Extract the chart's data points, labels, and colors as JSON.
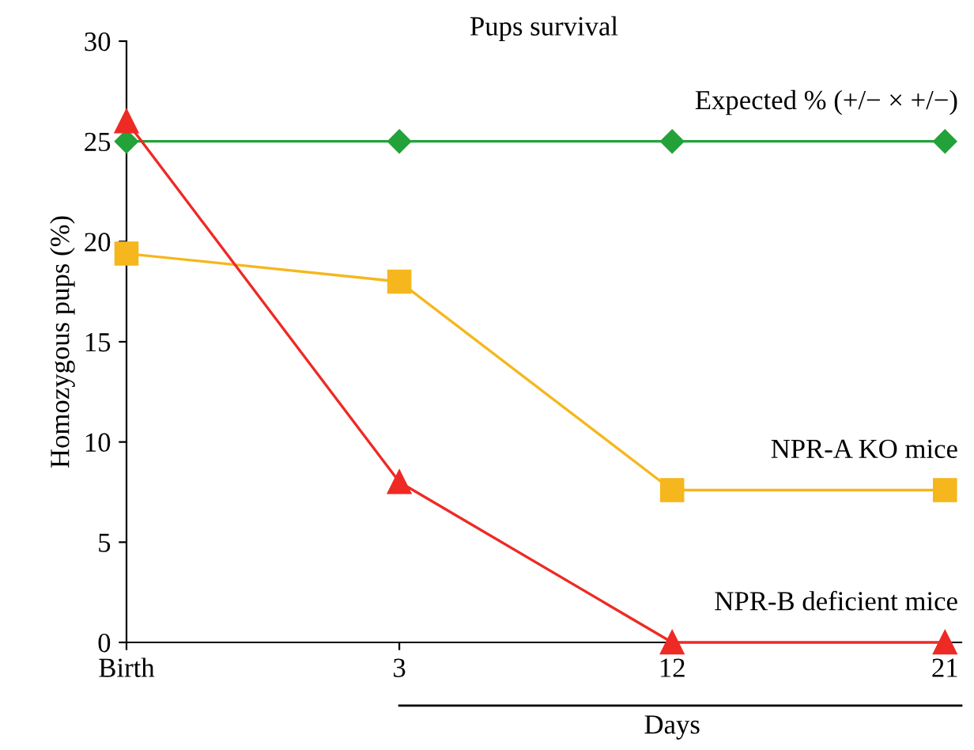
{
  "chart_data": {
    "type": "line",
    "title": "Pups survival",
    "xlabel": "Days",
    "ylabel": "Homozygous pups (%)",
    "categories": [
      "Birth",
      "3",
      "12",
      "21"
    ],
    "series": [
      {
        "name": "Expected % (+/− × +/−)",
        "color": "#23a23a",
        "marker": "diamond",
        "values": [
          25,
          25,
          25,
          25
        ]
      },
      {
        "name": "NPR-A KO mice",
        "color": "#f5b71d",
        "marker": "square",
        "values": [
          19.4,
          18,
          7.6,
          7.6
        ]
      },
      {
        "name": "NPR-B deficient mice",
        "color": "#ee2a24",
        "marker": "triangle",
        "values": [
          26,
          8,
          0,
          0
        ]
      }
    ],
    "ylim": [
      0,
      30
    ],
    "yticks": [
      0,
      5,
      10,
      15,
      20,
      25,
      30
    ],
    "grid": false,
    "legend": false,
    "line_style": "solid"
  }
}
